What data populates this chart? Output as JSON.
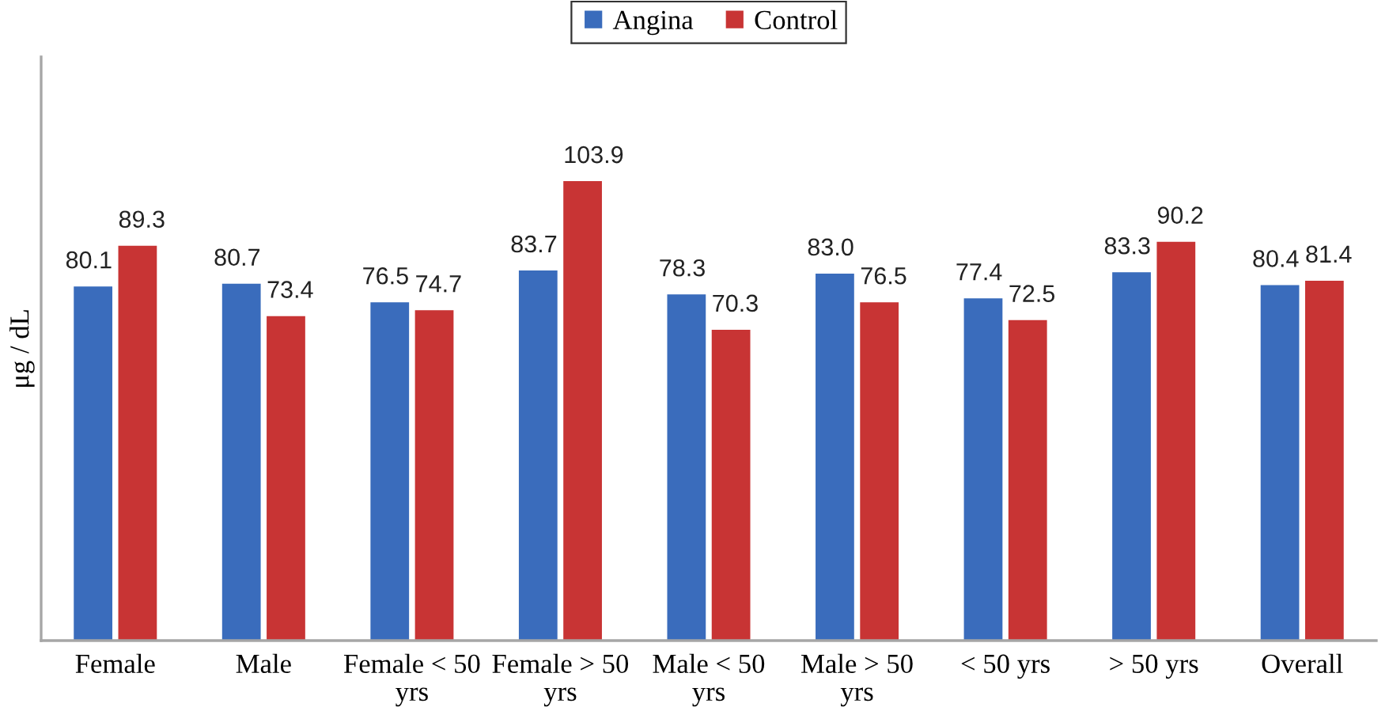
{
  "chart_data": {
    "type": "bar",
    "ylabel": "μg / dL",
    "categories": [
      "Female",
      "Male",
      "Female < 50 yrs",
      "Female > 50 yrs",
      "Male < 50 yrs",
      "Male > 50 yrs",
      "< 50 yrs",
      "> 50 yrs",
      "Overall"
    ],
    "series": [
      {
        "name": "Angina",
        "color": "#3a6cbc",
        "values": [
          80.1,
          80.7,
          76.5,
          83.7,
          78.3,
          83.0,
          77.4,
          83.3,
          80.4
        ],
        "value_labels": [
          "80.1",
          "80.7",
          "76.5",
          "83.7",
          "78.3",
          "83.0",
          "77.4",
          "83.3",
          "80.4"
        ]
      },
      {
        "name": "Control",
        "color": "#c83434",
        "values": [
          89.3,
          73.4,
          74.7,
          103.9,
          70.3,
          76.5,
          72.5,
          90.2,
          81.4
        ],
        "value_labels": [
          "89.3",
          "73.4",
          "74.7",
          "103.9",
          "70.3",
          "76.5",
          "72.5",
          "90.2",
          "81.4"
        ]
      }
    ],
    "ylim": [
      0,
      132
    ],
    "tick_labels": "x",
    "grid": false,
    "legend": "top"
  }
}
